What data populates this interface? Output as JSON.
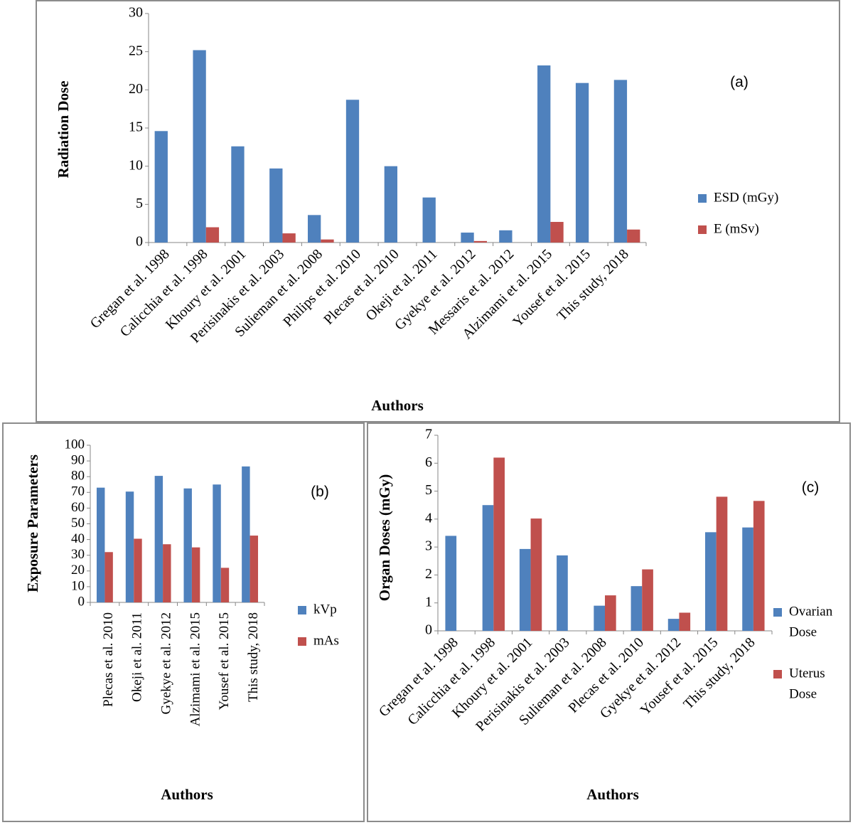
{
  "colors": {
    "series1": "#4f81bd",
    "series2": "#c0504d",
    "axis": "#878787",
    "text": "#000000"
  },
  "charts": [
    {
      "panel_label": "(a)",
      "xlabel": "Authors",
      "ylabel": "Radiation Dose",
      "series_names": [
        "ESD (mGy)",
        "E (mSv)"
      ]
    },
    {
      "panel_label": "(b)",
      "xlabel": "Authors",
      "ylabel": "Exposure Parameters",
      "series_names": [
        "kVp",
        "mAs"
      ]
    },
    {
      "panel_label": "(c)",
      "xlabel": "Authors",
      "ylabel": "Organ Doses (mGy)",
      "series_names": [
        [
          "Ovarian",
          "Dose"
        ],
        [
          "Uterus",
          "Dose"
        ]
      ]
    }
  ],
  "chart_data": [
    {
      "type": "bar",
      "title": "",
      "xlabel": "Authors",
      "ylabel": "Radiation Dose",
      "ylim": [
        0,
        30
      ],
      "yticks": [
        0,
        5,
        10,
        15,
        20,
        25,
        30
      ],
      "legend": "right",
      "grid": false,
      "categories": [
        "Gregan et al. 1998",
        "Calicchia et al. 1998",
        "Khoury et al. 2001",
        "Perisinakis et al. 2003",
        "Sulieman et al. 2008",
        "Philips et al. 2010",
        "Plecas et al. 2010",
        "Okeji et al. 2011",
        "Gyekye et al. 2012",
        "Messaris et al. 2012",
        "Alzimami et al. 2015",
        "Yousef et al. 2015",
        "This study, 2018"
      ],
      "series": [
        {
          "name": "ESD (mGy)",
          "values": [
            14.6,
            25.2,
            12.6,
            9.7,
            3.6,
            18.7,
            10.0,
            5.9,
            1.3,
            1.6,
            23.2,
            20.9,
            21.3
          ]
        },
        {
          "name": "E (mSv)",
          "values": [
            0,
            2.0,
            0,
            1.2,
            0.4,
            0,
            0,
            0,
            0.2,
            0,
            2.7,
            0,
            1.7
          ]
        }
      ]
    },
    {
      "type": "bar",
      "title": "",
      "xlabel": "Authors",
      "ylabel": "Exposure Parameters",
      "ylim": [
        0,
        100
      ],
      "yticks": [
        0,
        10,
        20,
        30,
        40,
        50,
        60,
        70,
        80,
        90,
        100
      ],
      "legend": "right",
      "grid": false,
      "categories": [
        "Plecas et al. 2010",
        "Okeji et al. 2011",
        "Gyekye et al. 2012",
        "Alzimami et al. 2015",
        "Yousef et al. 2015",
        "This study, 2018"
      ],
      "series": [
        {
          "name": "kVp",
          "values": [
            73,
            70.5,
            80.5,
            72.5,
            75,
            86.5
          ]
        },
        {
          "name": "mAs",
          "values": [
            32,
            40.5,
            37,
            35,
            22,
            42.5
          ]
        }
      ]
    },
    {
      "type": "bar",
      "title": "",
      "xlabel": "Authors",
      "ylabel": "Organ Doses (mGy)",
      "ylim": [
        0,
        7
      ],
      "yticks": [
        0,
        1,
        2,
        3,
        4,
        5,
        6,
        7
      ],
      "legend": "right",
      "grid": false,
      "categories": [
        "Gregan et al. 1998",
        "Calicchia et al. 1998",
        "Khoury et al. 2001",
        "Perisinakis et al. 2003",
        "Sulieman et al. 2008",
        "Plecas et al. 2010",
        "Gyekye et al. 2012",
        "Yousef et al. 2015",
        "This study, 2018"
      ],
      "series": [
        {
          "name": "Ovarian Dose",
          "values": [
            3.4,
            4.5,
            2.93,
            2.7,
            0.9,
            1.6,
            0.43,
            3.53,
            3.7
          ]
        },
        {
          "name": "Uterus Dose",
          "values": [
            0,
            6.2,
            4.02,
            0,
            1.27,
            2.2,
            0.65,
            4.8,
            4.65
          ]
        }
      ]
    }
  ]
}
